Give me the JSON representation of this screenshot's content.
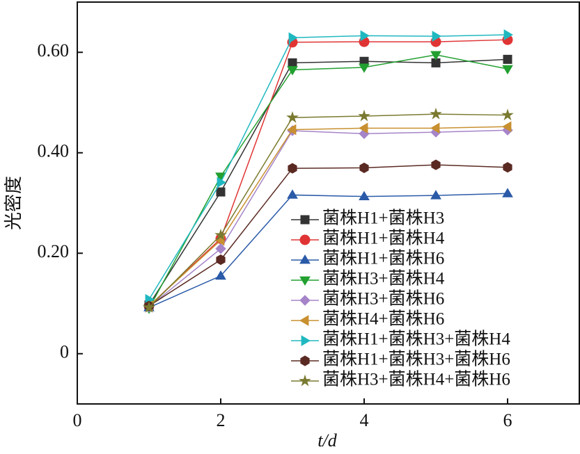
{
  "chart_data": {
    "type": "line",
    "xlabel": "t/d",
    "ylabel": "光密度",
    "xlim": [
      0,
      7
    ],
    "xticks": [
      0,
      2,
      4,
      6
    ],
    "ylim": [
      -0.1,
      0.7
    ],
    "yticks": [
      0,
      {
        "value": 0.2,
        "label": "0.20"
      },
      {
        "value": 0.4,
        "label": "0.40"
      },
      {
        "value": 0.6,
        "label": "0.60"
      }
    ],
    "x": [
      1,
      2,
      3,
      4,
      5,
      6
    ],
    "legend": "lower right",
    "series": [
      {
        "name": "菌株H1+菌株H3",
        "color": "#333333",
        "marker": "square",
        "values": [
          0.097,
          0.322,
          0.579,
          0.582,
          0.579,
          0.586
        ]
      },
      {
        "name": "菌株H1+菌株H4",
        "color": "#e03434",
        "marker": "circle",
        "values": [
          0.095,
          0.229,
          0.62,
          0.621,
          0.621,
          0.625
        ]
      },
      {
        "name": "菌株H1+菌株H6",
        "color": "#2a5aa8",
        "marker": "triangle-up",
        "values": [
          0.092,
          0.155,
          0.316,
          0.313,
          0.315,
          0.319
        ]
      },
      {
        "name": "菌株H3+菌株H4",
        "color": "#22a030",
        "marker": "triangle-down",
        "values": [
          0.09,
          0.353,
          0.565,
          0.57,
          0.595,
          0.567
        ]
      },
      {
        "name": "菌株H3+菌株H6",
        "color": "#a584c8",
        "marker": "diamond",
        "values": [
          0.093,
          0.209,
          0.444,
          0.438,
          0.441,
          0.445
        ]
      },
      {
        "name": "菌株H4+菌株H6",
        "color": "#c89030",
        "marker": "triangle-left",
        "values": [
          0.095,
          0.226,
          0.446,
          0.449,
          0.449,
          0.452
        ]
      },
      {
        "name": "菌株H1+菌株H3+菌株H4",
        "color": "#20b8c0",
        "marker": "triangle-right",
        "values": [
          0.108,
          0.341,
          0.629,
          0.633,
          0.632,
          0.635
        ]
      },
      {
        "name": "菌株H1+菌株H3+菌株H6",
        "color": "#5a2a22",
        "marker": "hexagon",
        "values": [
          0.095,
          0.187,
          0.369,
          0.37,
          0.376,
          0.371
        ]
      },
      {
        "name": "菌株H3+菌株H4+菌株H6",
        "color": "#7a7a30",
        "marker": "star",
        "values": [
          0.092,
          0.236,
          0.47,
          0.473,
          0.477,
          0.475
        ]
      }
    ]
  }
}
